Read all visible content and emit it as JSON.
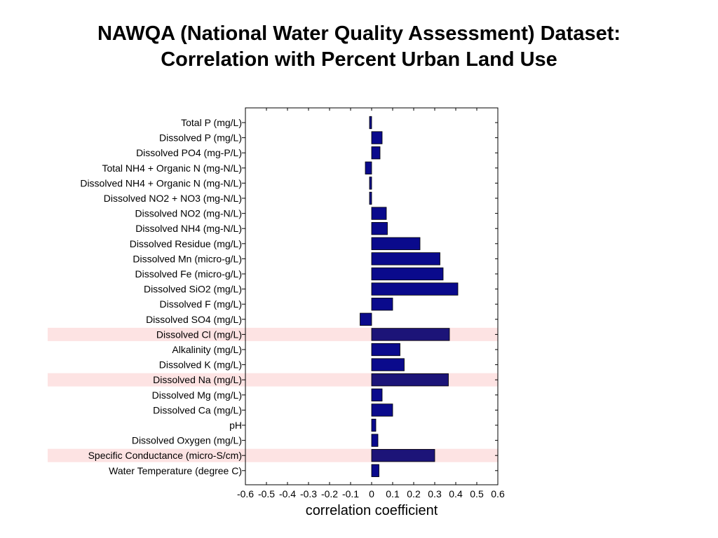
{
  "chart_data": {
    "type": "bar",
    "orientation": "horizontal",
    "title": "NAWQA (National Water Quality Assessment) Dataset:",
    "subtitle": "Correlation with Percent Urban Land Use",
    "xlabel": "correlation coefficient",
    "ylabel": "",
    "xlim": [
      -0.6,
      0.6
    ],
    "xticks": [
      "-0.6",
      "-0.5",
      "-0.4",
      "-0.3",
      "-0.2",
      "-0.1",
      "0",
      "0.1",
      "0.2",
      "0.3",
      "0.4",
      "0.5",
      "0.6"
    ],
    "categories": [
      "Total P (mg/L)",
      "Dissolved P (mg/L)",
      "Dissolved PO4 (mg-P/L)",
      "Total NH4 + Organic N (mg-N/L)",
      "Dissolved NH4 + Organic N (mg-N/L)",
      "Dissolved NO2 + NO3 (mg-N/L)",
      "Dissolved NO2 (mg-N/L)",
      "Dissolved NH4 (mg-N/L)",
      "Dissolved Residue (mg/L)",
      "Dissolved Mn (micro-g/L)",
      "Dissolved Fe (micro-g/L)",
      "Dissolved SiO2 (mg/L)",
      "Dissolved F (mg/L)",
      "Dissolved SO4 (mg/L)",
      "Dissolved Cl (mg/L)",
      "Alkalinity (mg/L)",
      "Dissolved K (mg/L)",
      "Dissolved Na (mg/L)",
      "Dissolved Mg (mg/L)",
      "Dissolved Ca (mg/L)",
      "pH",
      "Dissolved Oxygen (mg/L)",
      "Specific Conductance (micro-S/cm)",
      "Water Temperature (degree C)"
    ],
    "values": [
      -0.01,
      0.05,
      0.04,
      -0.03,
      -0.01,
      -0.01,
      0.07,
      0.075,
      0.23,
      0.325,
      0.34,
      0.41,
      0.1,
      -0.055,
      0.37,
      0.135,
      0.155,
      0.365,
      0.05,
      0.1,
      0.02,
      0.03,
      0.3,
      0.035
    ],
    "highlighted": [
      "Dissolved Cl (mg/L)",
      "Dissolved Na (mg/L)",
      "Specific Conductance (micro-S/cm)"
    ],
    "grid": false,
    "legend": "none",
    "colors": {
      "bar": "#0a0a8c",
      "bar_highlighted": "#1c1478",
      "bar_edge": "#000000",
      "highlight_band": "#fde3e3"
    }
  }
}
